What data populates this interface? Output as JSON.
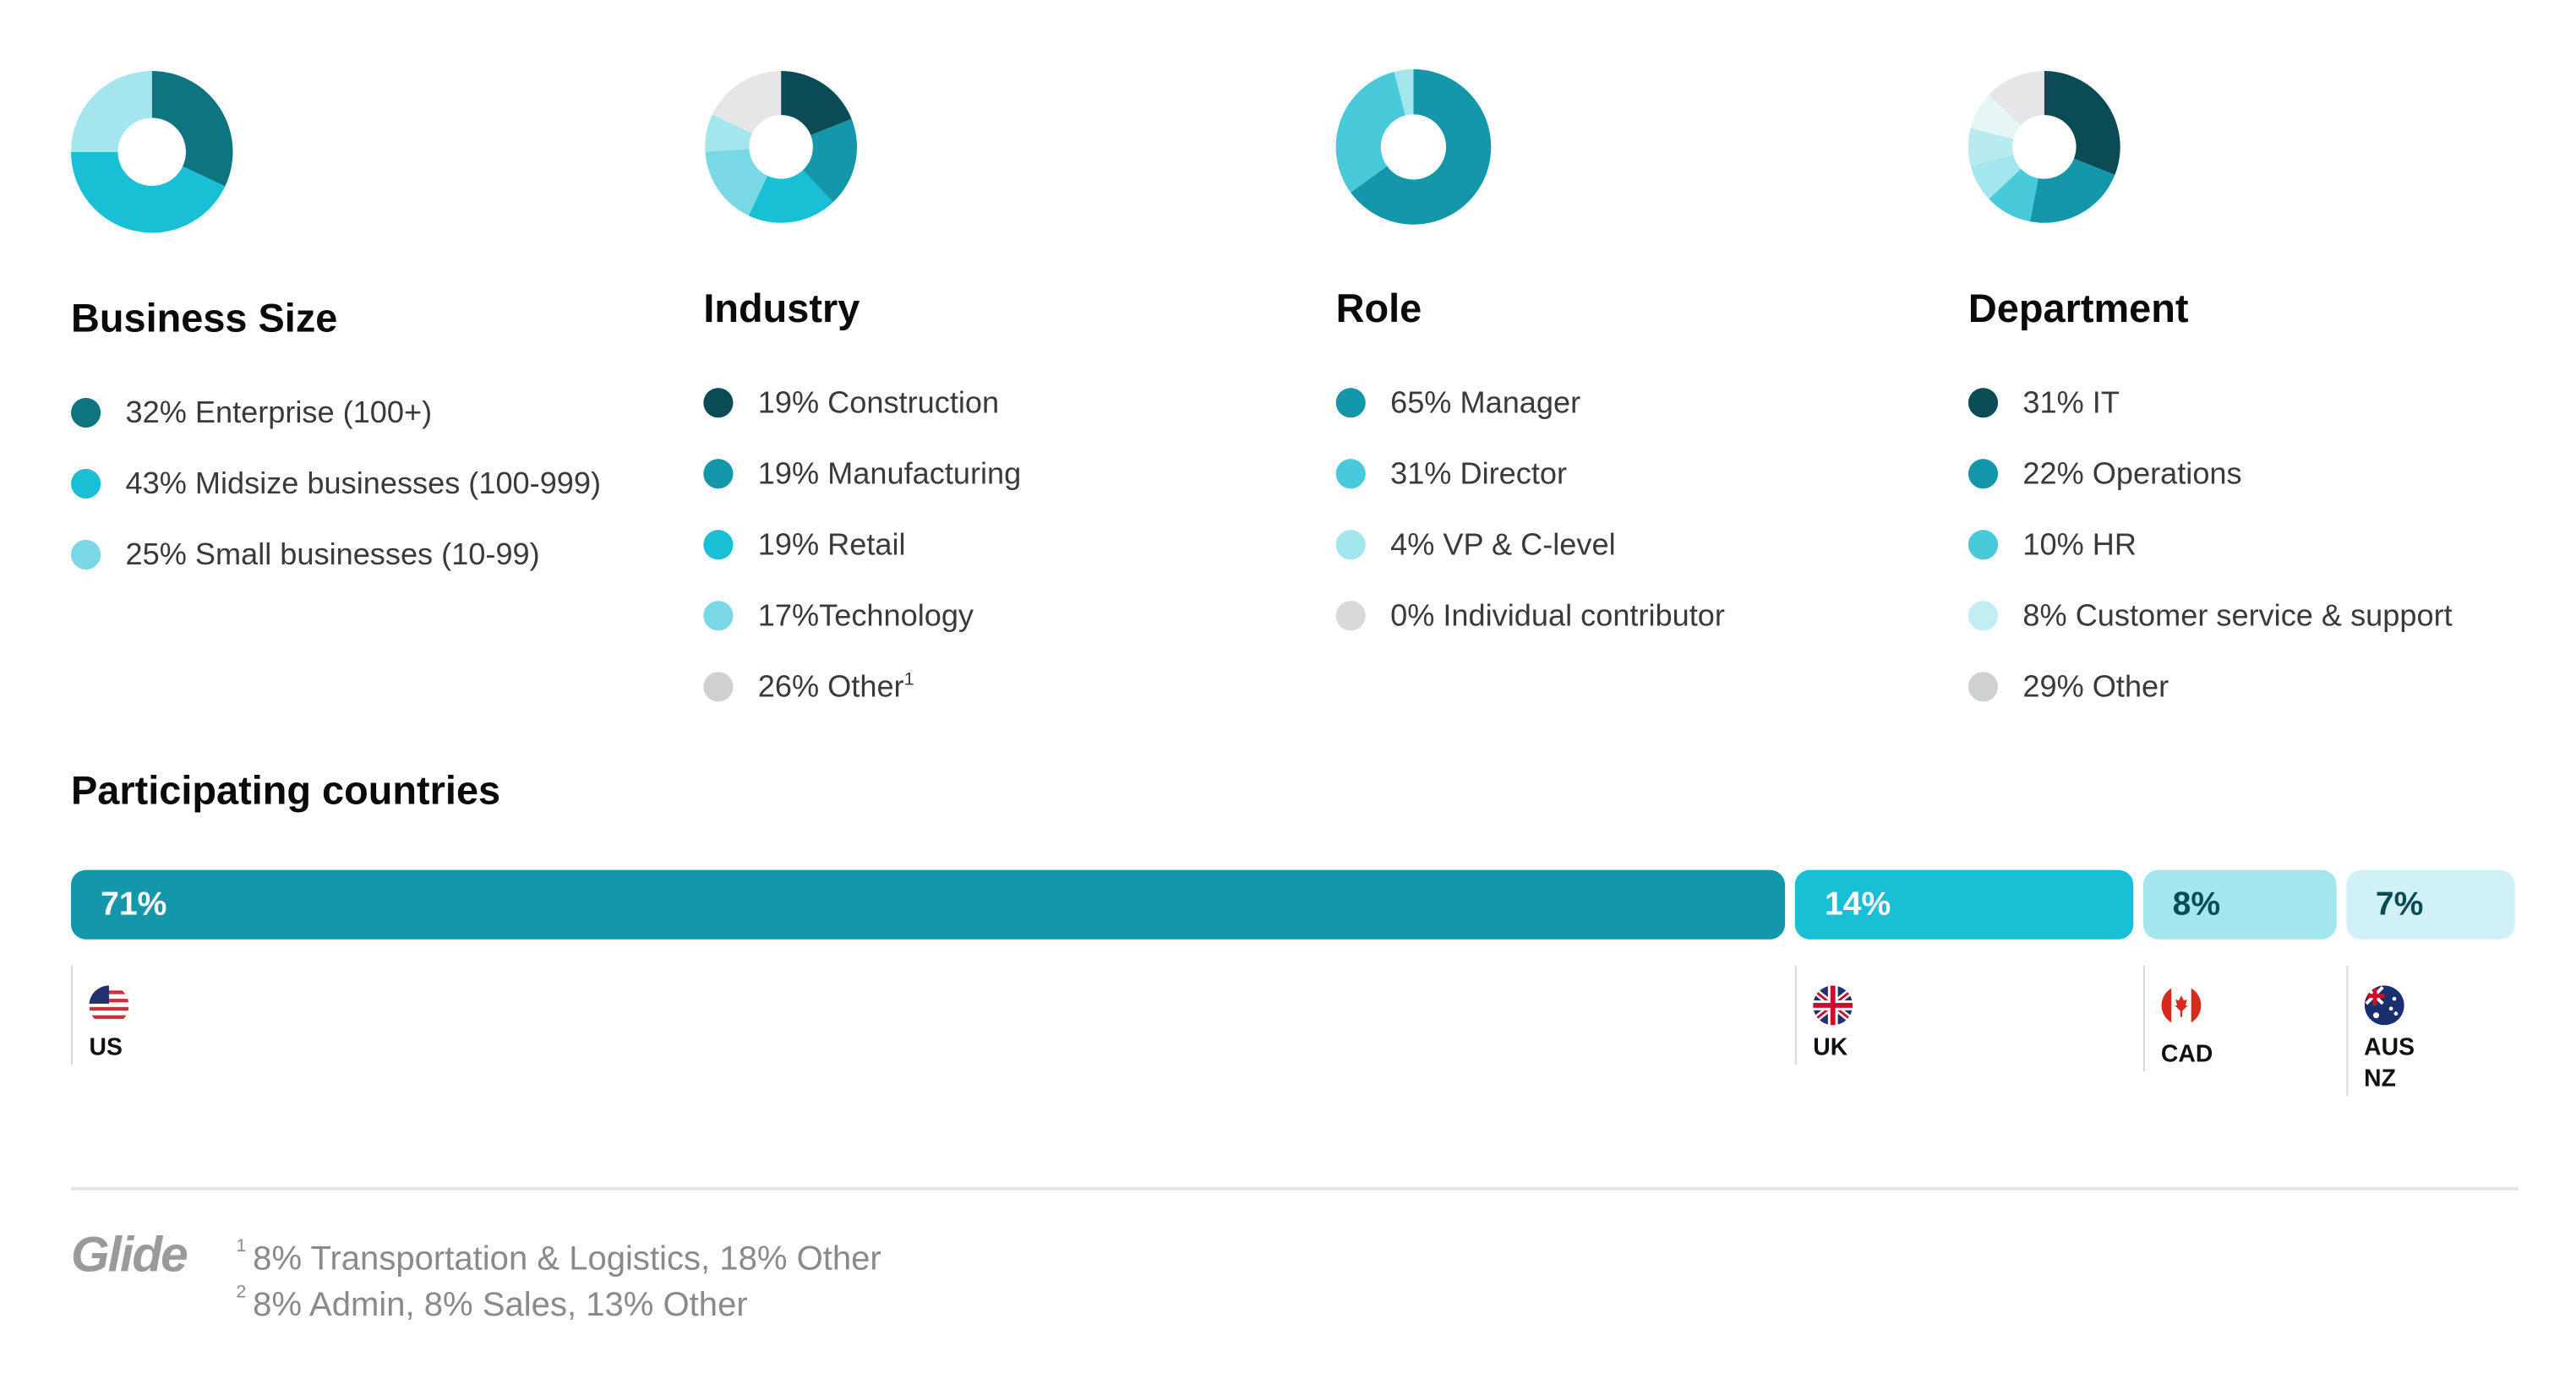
{
  "chart_data": [
    {
      "type": "pie",
      "title": "Business Size",
      "donut": true,
      "slices": [
        {
          "label": "32% Enterprise (100+)",
          "value": 32,
          "color": "#0e7480"
        },
        {
          "label": "43% Midsize businesses (100-999)",
          "value": 43,
          "color": "#19bfd4"
        },
        {
          "label": "25% Small businesses (10-99)",
          "value": 25,
          "color": "#a3e6ee",
          "legend_color": "#79d8e4"
        }
      ]
    },
    {
      "type": "pie",
      "title": "Industry",
      "donut": true,
      "slices": [
        {
          "label": "19% Construction",
          "value": 19,
          "color": "#0b4b55"
        },
        {
          "label": "19% Manufacturing",
          "value": 19,
          "color": "#1497a8"
        },
        {
          "label": "19% Retail",
          "value": 19,
          "color": "#19bfd4"
        },
        {
          "label": "17%Technology",
          "value": 17,
          "color": "#79d8e4"
        },
        {
          "label": "26% Other",
          "sup": "1",
          "value": 26,
          "color": "#cfd0d2",
          "parts": [
            {
              "value": 8,
              "color": "#a3e6ee"
            },
            {
              "value": 18,
              "color": "#e6e6e8"
            }
          ]
        }
      ]
    },
    {
      "type": "pie",
      "title": "Role",
      "donut": true,
      "slices": [
        {
          "label": "65% Manager",
          "value": 65,
          "color": "#1497a8"
        },
        {
          "label": "31% Director",
          "value": 31,
          "color": "#48cadb"
        },
        {
          "label": "4% VP & C-level",
          "value": 4,
          "color": "#a3e6ee"
        },
        {
          "label": "0% Individual contributor",
          "value": 0,
          "color": "#d9d9d9"
        }
      ]
    },
    {
      "type": "pie",
      "title": "Department",
      "donut": true,
      "slices": [
        {
          "label": "31% IT",
          "value": 31,
          "color": "#0b4b55"
        },
        {
          "label": "22% Operations",
          "value": 22,
          "color": "#1497a8"
        },
        {
          "label": "10% HR",
          "value": 10,
          "color": "#48cadb"
        },
        {
          "label": "8% Customer service & support",
          "value": 8,
          "color": "#a3e6ee",
          "legend_color": "#c2eef3"
        },
        {
          "label": "29% Other",
          "value": 29,
          "color": "#cfd0d2",
          "parts": [
            {
              "value": 8,
              "color": "#b8eaf0"
            },
            {
              "value": 8,
              "color": "#e8f5f7"
            },
            {
              "value": 13,
              "color": "#e6e6e8"
            }
          ]
        }
      ]
    },
    {
      "type": "bar",
      "title": "Participating countries",
      "stacked": true,
      "orientation": "horizontal",
      "segments": [
        {
          "label": "71%",
          "value": 71,
          "country": "US",
          "color": "#1597aa",
          "text_color": "#ffffff"
        },
        {
          "label": "14%",
          "value": 14,
          "country": "UK",
          "color": "#19bfd4",
          "text_color": "#ffffff"
        },
        {
          "label": "8%",
          "value": 8,
          "country": "CAD",
          "color": "#a3e6ee",
          "text_color": "#0b4b55"
        },
        {
          "label": "7%",
          "value": 7,
          "country": "AUS\nNZ",
          "color": "#d0f2f6",
          "text_color": "#0b4b55"
        }
      ]
    }
  ],
  "footer": {
    "logo": "Glide",
    "footnotes": [
      {
        "mark": "1",
        "text": "8% Transportation & Logistics, 18% Other"
      },
      {
        "mark": "2",
        "text": "8% Admin, 8% Sales, 13% Other"
      }
    ]
  }
}
